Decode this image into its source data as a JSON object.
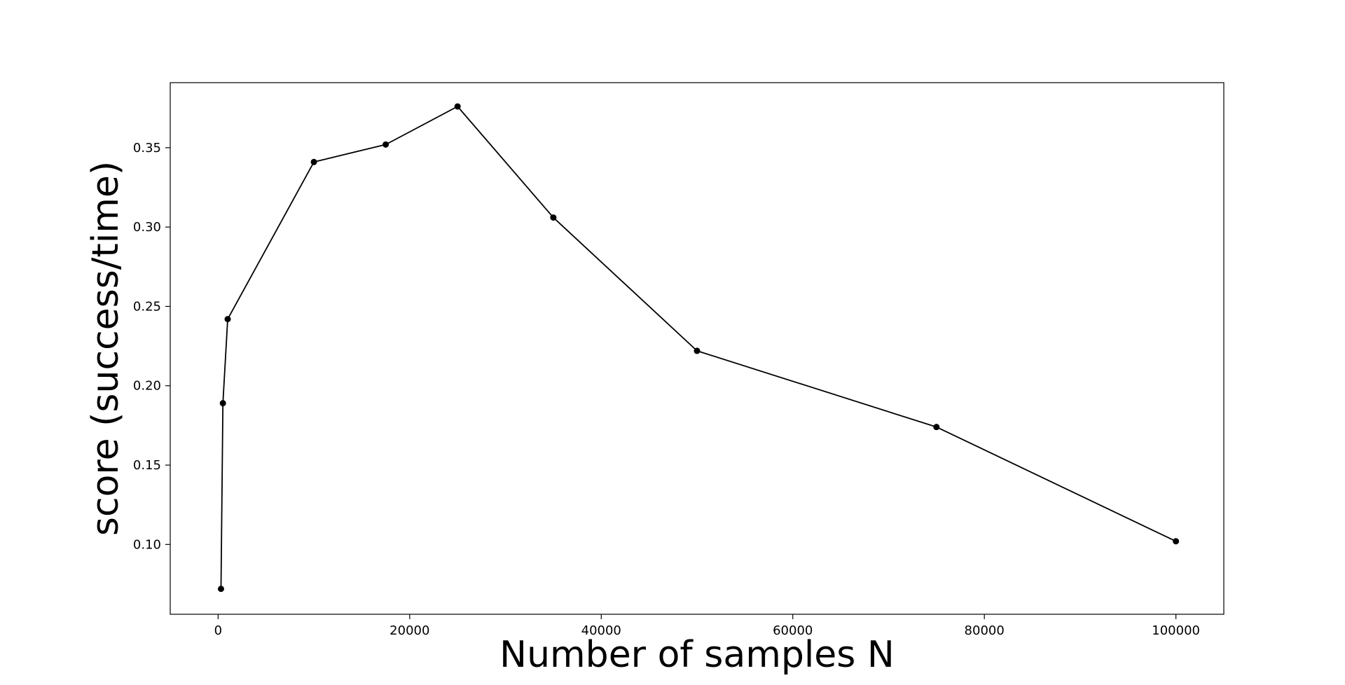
{
  "chart_data": {
    "type": "line",
    "title": "",
    "xlabel": "Number of samples N",
    "ylabel": "score (success/time)",
    "xlim": [
      -5000,
      105000
    ],
    "ylim": [
      0.056,
      0.391
    ],
    "xticks": [
      0,
      20000,
      40000,
      60000,
      80000,
      100000
    ],
    "xtick_labels": [
      "0",
      "20000",
      "40000",
      "60000",
      "80000",
      "100000"
    ],
    "yticks": [
      0.1,
      0.15,
      0.2,
      0.25,
      0.3,
      0.35
    ],
    "ytick_labels": [
      "0.10",
      "0.15",
      "0.20",
      "0.25",
      "0.30",
      "0.35"
    ],
    "grid": false,
    "legend": "none",
    "series": [
      {
        "color": "#000000",
        "marker": "circle",
        "x": [
          300,
          500,
          1000,
          10000,
          17500,
          25000,
          35000,
          50000,
          75000,
          100000
        ],
        "y": [
          0.072,
          0.189,
          0.242,
          0.341,
          0.352,
          0.376,
          0.306,
          0.222,
          0.174,
          0.102
        ]
      }
    ]
  }
}
